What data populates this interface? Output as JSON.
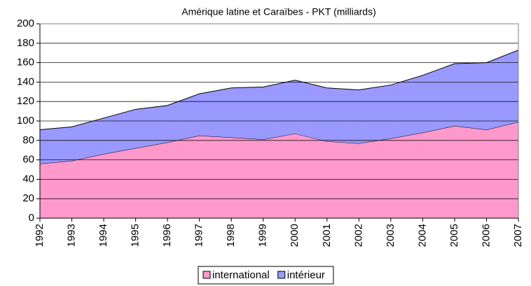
{
  "chart_data": {
    "type": "stacked-area",
    "title": "Amérique latine et Caraïbes - PKT (milliards)",
    "categories": [
      "1992",
      "1993",
      "1994",
      "1995",
      "1996",
      "1997",
      "1998",
      "1999",
      "2000",
      "2001",
      "2002",
      "2003",
      "2004",
      "2005",
      "2006",
      "2007"
    ],
    "series": [
      {
        "name": "international",
        "color": "#ff99cc",
        "values": [
          56,
          59,
          66,
          72,
          78,
          85,
          83,
          81,
          87,
          79,
          77,
          82,
          88,
          95,
          91,
          99
        ]
      },
      {
        "name": "intérieur",
        "color": "#9999ff",
        "values": [
          35,
          35,
          37,
          40,
          38,
          43,
          51,
          54,
          55,
          55,
          55,
          55,
          59,
          64,
          69,
          74
        ]
      }
    ],
    "ylim": [
      0,
      200
    ],
    "yticks": [
      0,
      20,
      40,
      60,
      80,
      100,
      120,
      140,
      160,
      180,
      200
    ],
    "grid": true,
    "legend": "bottom"
  }
}
